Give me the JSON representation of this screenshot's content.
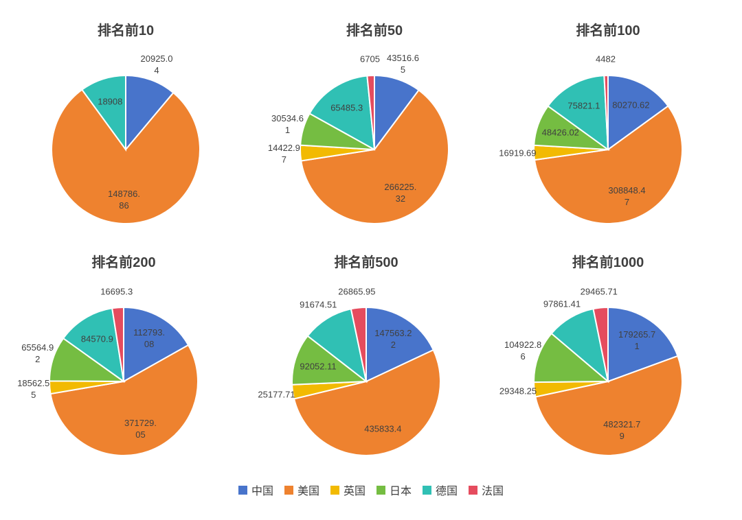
{
  "style": {
    "title_color": "#3F3F3F",
    "label_color": "#404040",
    "background": "#FFFFFF"
  },
  "legend": {
    "position": "bottom",
    "items": [
      {
        "label": "中国",
        "color": "#4874CB"
      },
      {
        "label": "美国",
        "color": "#EE822F"
      },
      {
        "label": "英国",
        "color": "#F2BA02"
      },
      {
        "label": "日本",
        "color": "#75BD42"
      },
      {
        "label": "德国",
        "color": "#30C0B4"
      },
      {
        "label": "法国",
        "color": "#E54C5E"
      }
    ]
  },
  "chart_data": [
    {
      "type": "pie",
      "title": "排名前10",
      "start_angle_deg": 0,
      "direction": "clockwise",
      "slices": [
        {
          "label": "中国",
          "value": 20925.04,
          "display": "20925.0\n4",
          "placement": "outside"
        },
        {
          "label": "美国",
          "value": 148786.86,
          "display": "148786.\n86",
          "placement": "inside"
        },
        {
          "label": "德国",
          "value": 18908,
          "display": "18908",
          "placement": "inside"
        }
      ]
    },
    {
      "type": "pie",
      "title": "排名前50",
      "start_angle_deg": 0,
      "direction": "clockwise",
      "slices": [
        {
          "label": "中国",
          "value": 43516.65,
          "display": "43516.6\n5",
          "placement": "outside"
        },
        {
          "label": "美国",
          "value": 266225.32,
          "display": "266225.\n32",
          "placement": "inside"
        },
        {
          "label": "英国",
          "value": 14422.97,
          "display": "14422.9\n7",
          "placement": "outside"
        },
        {
          "label": "日本",
          "value": 30534.61,
          "display": "30534.6\n1",
          "placement": "outside"
        },
        {
          "label": "德国",
          "value": 65485.3,
          "display": "65485.3",
          "placement": "inside"
        },
        {
          "label": "法国",
          "value": 6705,
          "display": "6705",
          "placement": "outside"
        }
      ]
    },
    {
      "type": "pie",
      "title": "排名前100",
      "start_angle_deg": 0,
      "direction": "clockwise",
      "slices": [
        {
          "label": "中国",
          "value": 80270.62,
          "display": "80270.62",
          "placement": "inside"
        },
        {
          "label": "美国",
          "value": 308848.47,
          "display": "308848.4\n7",
          "placement": "inside"
        },
        {
          "label": "英国",
          "value": 16919.69,
          "display": "16919.69",
          "placement": "outside"
        },
        {
          "label": "日本",
          "value": 48426.02,
          "display": "48426.02",
          "placement": "inside"
        },
        {
          "label": "德国",
          "value": 75821.1,
          "display": "75821.1",
          "placement": "inside"
        },
        {
          "label": "法国",
          "value": 4482,
          "display": "4482",
          "placement": "outside"
        }
      ]
    },
    {
      "type": "pie",
      "title": "排名前200",
      "start_angle_deg": 0,
      "direction": "clockwise",
      "slices": [
        {
          "label": "中国",
          "value": 112793.08,
          "display": "112793.\n08",
          "placement": "inside"
        },
        {
          "label": "美国",
          "value": 371729.05,
          "display": "371729.\n05",
          "placement": "inside"
        },
        {
          "label": "英国",
          "value": 18562.55,
          "display": "18562.5\n5",
          "placement": "outside"
        },
        {
          "label": "日本",
          "value": 65564.92,
          "display": "65564.9\n2",
          "placement": "outside"
        },
        {
          "label": "德国",
          "value": 84570.9,
          "display": "84570.9",
          "placement": "inside"
        },
        {
          "label": "法国",
          "value": 16695.3,
          "display": "16695.3",
          "placement": "outside"
        }
      ]
    },
    {
      "type": "pie",
      "title": "排名前500",
      "start_angle_deg": 0,
      "direction": "clockwise",
      "slices": [
        {
          "label": "中国",
          "value": 147563.22,
          "display": "147563.2\n2",
          "placement": "inside"
        },
        {
          "label": "美国",
          "value": 435833.4,
          "display": "435833.4",
          "placement": "inside"
        },
        {
          "label": "英国",
          "value": 25177.71,
          "display": "25177.71",
          "placement": "outside"
        },
        {
          "label": "日本",
          "value": 92052.11,
          "display": "92052.11",
          "placement": "inside"
        },
        {
          "label": "德国",
          "value": 91674.51,
          "display": "91674.51",
          "placement": "outside"
        },
        {
          "label": "法国",
          "value": 26865.95,
          "display": "26865.95",
          "placement": "outside"
        }
      ]
    },
    {
      "type": "pie",
      "title": "排名前1000",
      "start_angle_deg": 0,
      "direction": "clockwise",
      "slices": [
        {
          "label": "中国",
          "value": 179265.71,
          "display": "179265.7\n1",
          "placement": "inside"
        },
        {
          "label": "美国",
          "value": 482321.79,
          "display": "482321.7\n9",
          "placement": "inside"
        },
        {
          "label": "英国",
          "value": 29348.25,
          "display": "29348.25",
          "placement": "outside"
        },
        {
          "label": "日本",
          "value": 104922.86,
          "display": "104922.8\n6",
          "placement": "outside"
        },
        {
          "label": "德国",
          "value": 97861.41,
          "display": "97861.41",
          "placement": "outside"
        },
        {
          "label": "法国",
          "value": 29465.71,
          "display": "29465.71",
          "placement": "outside"
        }
      ]
    }
  ]
}
